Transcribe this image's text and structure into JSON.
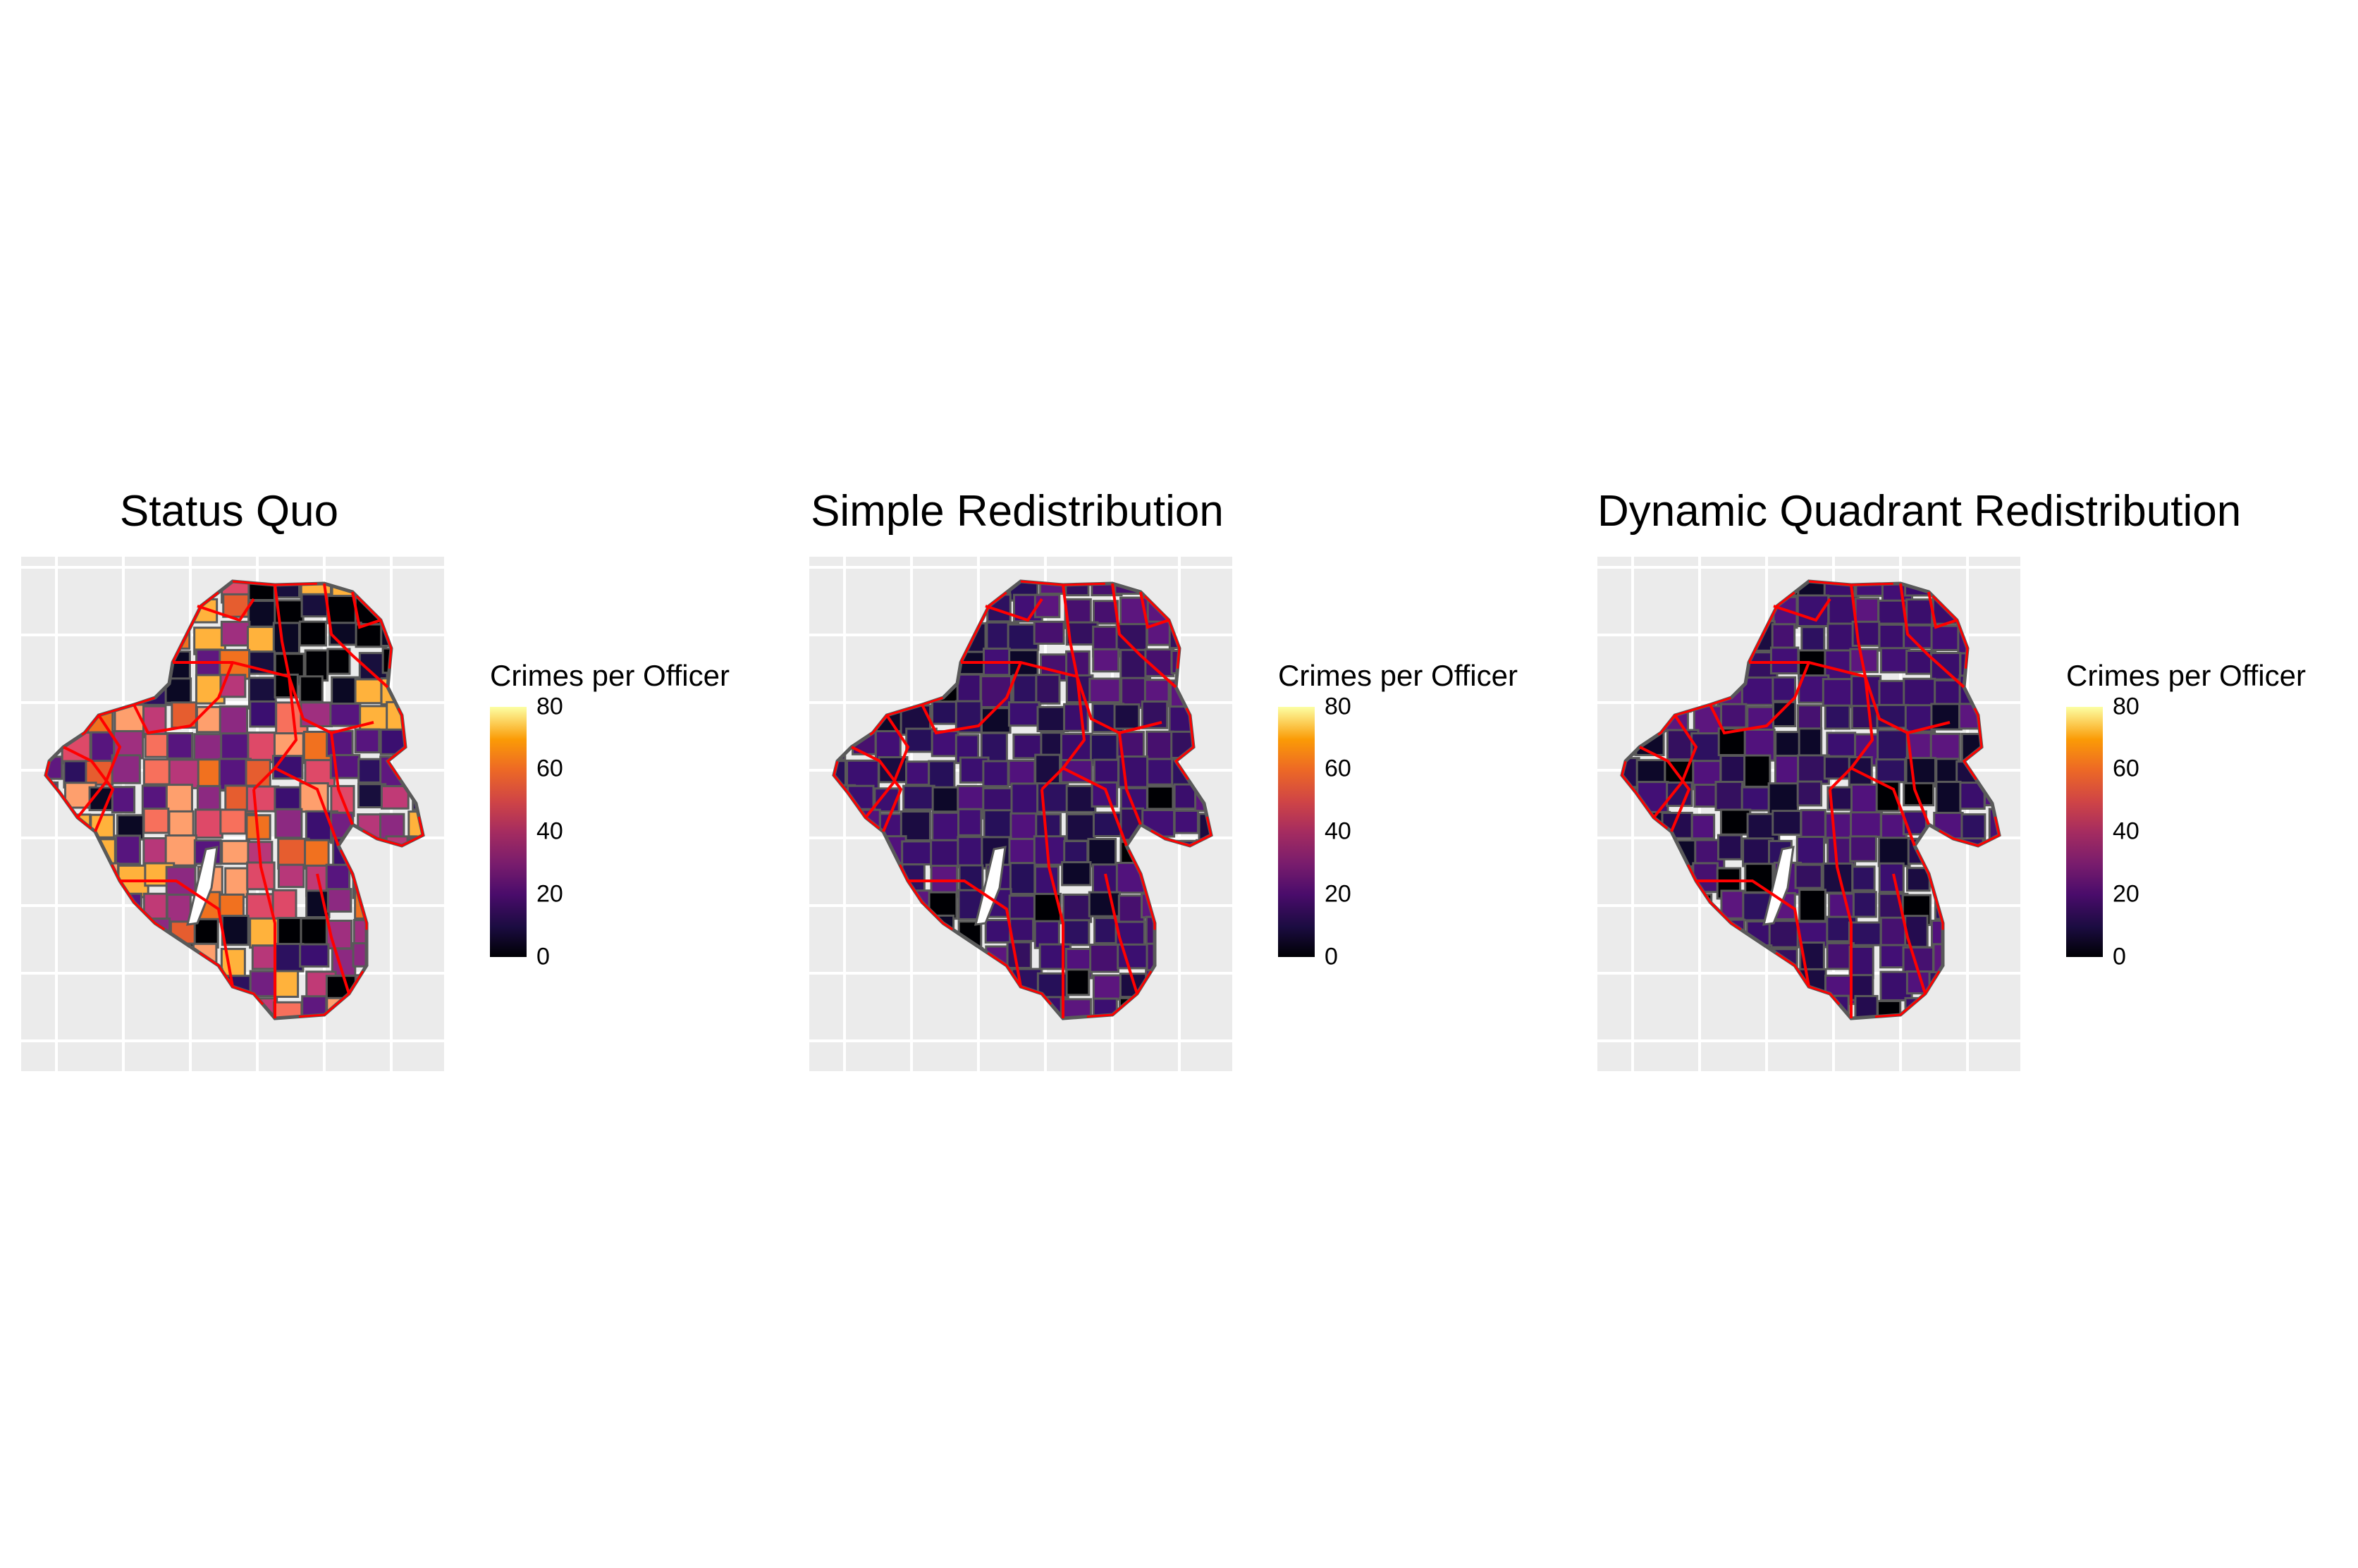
{
  "maps": [
    {
      "id": "status-quo",
      "title": "Status Quo",
      "fills": [
        "#3b0f70",
        "#57157e",
        "#8c2981",
        "#b73779",
        "#de4968",
        "#f7705c",
        "#fe9f6d",
        "#e65d2f",
        "#f1711f",
        "#5f187f",
        "#2c115f",
        "#721f81",
        "#9f2f7f",
        "#c03a76",
        "#180f3d",
        "#000004",
        "#0b0924",
        "#ffb23c"
      ]
    },
    {
      "id": "simple-redistribution",
      "title": "Simple Redistribution",
      "fills": [
        "#2d1160",
        "#3b0f70",
        "#420f75",
        "#51127c",
        "#3a0e6c",
        "#261059",
        "#1b0c41",
        "#0d0829",
        "#000004",
        "#34105f",
        "#5c167e",
        "#47106e"
      ]
    },
    {
      "id": "dynamic-quadrant-redistribution",
      "title": "Dynamic Quadrant Redistribution",
      "fills": [
        "#3b0f70",
        "#461170",
        "#51127c",
        "#2d1160",
        "#34105f",
        "#240c4f",
        "#1b0c41",
        "#0d0829",
        "#000004",
        "#5c167e",
        "#420f75",
        "#3a0e6c"
      ]
    }
  ],
  "legend": {
    "title": "Crimes per Officer",
    "ticks": [
      "0",
      "20",
      "40",
      "60",
      "80"
    ],
    "min": 0,
    "max": 80,
    "palette": [
      "#000004",
      "#1b0c41",
      "#4a0c6b",
      "#781c6d",
      "#a52c60",
      "#cf4446",
      "#ed6925",
      "#fb9b06",
      "#fcffa4"
    ]
  },
  "colors": {
    "panel_background": "#ebebeb",
    "gridline": "#ffffff",
    "quadrant_border": "#ff0000",
    "district_border": "#595959"
  }
}
